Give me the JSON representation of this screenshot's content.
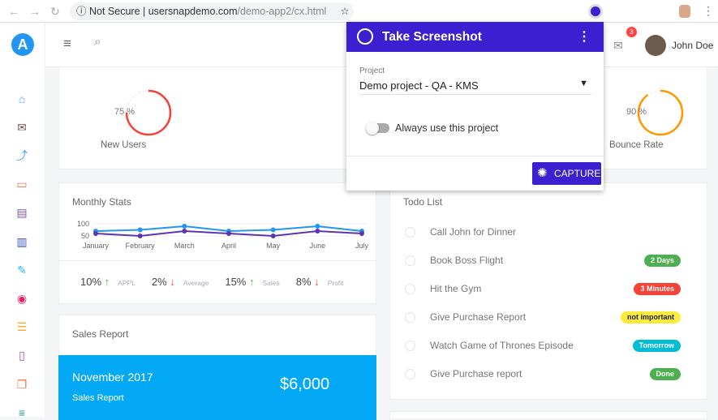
{
  "browser": {
    "security": "Not Secure",
    "url_host": "usersnapdemo.com",
    "url_path": "/demo-app2/cx.html"
  },
  "header": {
    "user_name": "John Doe",
    "mail_count": "3"
  },
  "sidebar": {
    "items": [
      "home-icon",
      "mail-icon",
      "share-icon",
      "calendar-icon",
      "chat-icon",
      "chart-icon",
      "pencil-icon",
      "palette-icon",
      "list-icon",
      "map-icon",
      "copy-icon",
      "layers-icon"
    ]
  },
  "gauges": [
    {
      "label": "New Users",
      "value_label": "75 %",
      "value": 75,
      "color": "#f44336"
    },
    {
      "label": "Bounce Rate",
      "value_label": "90 %",
      "value": 90,
      "color": "#ff9800"
    }
  ],
  "monthly": {
    "title": "Monthly Stats",
    "stats": [
      {
        "value": "10%",
        "dir": "up",
        "label": "APPL"
      },
      {
        "value": "2%",
        "dir": "down",
        "label": "Average"
      },
      {
        "value": "15%",
        "dir": "up",
        "label": "Sales"
      },
      {
        "value": "8%",
        "dir": "down",
        "label": "Profit"
      }
    ]
  },
  "chart_data": {
    "type": "line",
    "categories": [
      "January",
      "February",
      "March",
      "April",
      "May",
      "June",
      "July"
    ],
    "yticks": [
      100,
      50
    ],
    "ylim": [
      40,
      110
    ],
    "series": [
      {
        "values": [
          70,
          75,
          90,
          70,
          75,
          90,
          70
        ],
        "color": "#2196f3"
      },
      {
        "values": [
          60,
          50,
          70,
          60,
          50,
          70,
          60
        ],
        "color": "#5e35b1"
      }
    ]
  },
  "sales": {
    "title": "Sales Report",
    "month": "November 2017",
    "subtitle": "Sales Report",
    "amount": "$6,000"
  },
  "todo": {
    "title": "Todo List",
    "items": [
      {
        "text": "Call John for Dinner",
        "badge": "",
        "color": ""
      },
      {
        "text": "Book Boss Flight",
        "badge": "2 Days",
        "color": "#4caf50"
      },
      {
        "text": "Hit the Gym",
        "badge": "3 Minutes",
        "color": "#f44336"
      },
      {
        "text": "Give Purchase Report",
        "badge": "not important",
        "color": "#ffeb3b"
      },
      {
        "text": "Watch Game of Thrones Episode",
        "badge": "Tomorrow",
        "color": "#00bcd4"
      },
      {
        "text": "Give Purchase report",
        "badge": "Done",
        "color": "#4caf50"
      }
    ]
  },
  "popup": {
    "title": "Take Screenshot",
    "project_label": "Project",
    "project_value": "Demo project - QA - KMS",
    "toggle_label": "Always use this project",
    "toggle_on": false,
    "capture_label": "CAPTURE",
    "accent": "#3b1fd1"
  }
}
